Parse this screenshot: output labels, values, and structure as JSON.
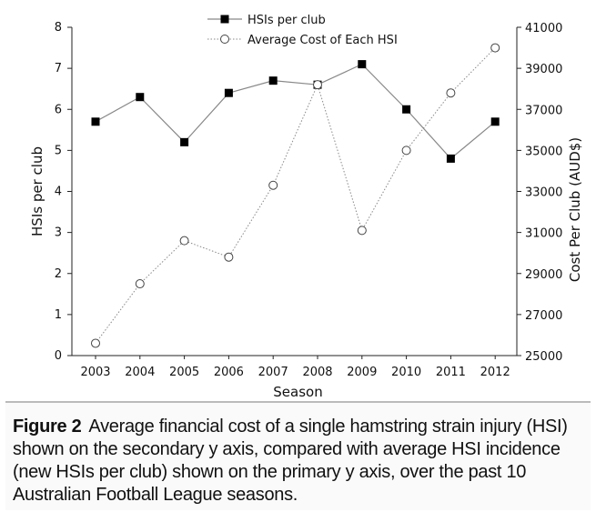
{
  "chart_data": {
    "type": "line",
    "x": [
      2003,
      2004,
      2005,
      2006,
      2007,
      2008,
      2009,
      2010,
      2011,
      2012
    ],
    "xlabel": "Season",
    "series": [
      {
        "name": "HSIs per club",
        "axis": "primary",
        "marker": "filled-square",
        "line": "solid",
        "color": "#888888",
        "values": [
          5.7,
          6.3,
          5.2,
          6.4,
          6.7,
          6.6,
          7.1,
          6.0,
          4.8,
          5.7
        ]
      },
      {
        "name": "Average Cost of Each HSI",
        "axis": "secondary",
        "marker": "open-circle",
        "line": "dotted",
        "color": "#888888",
        "values": [
          25600,
          28500,
          30600,
          29800,
          33300,
          38200,
          31100,
          35000,
          37800,
          40000
        ]
      }
    ],
    "y_primary": {
      "label": "HSIs per club",
      "range": [
        0,
        8
      ],
      "ticks": [
        "0",
        "1",
        "2",
        "3",
        "4",
        "5",
        "6",
        "7",
        "8"
      ]
    },
    "y_secondary": {
      "label": "Cost Per Club (AUD$)",
      "range": [
        25000,
        41000
      ],
      "ticks": [
        "25000",
        "27000",
        "29000",
        "31000",
        "33000",
        "35000",
        "37000",
        "39000",
        "41000"
      ]
    },
    "x_ticks": [
      "2003",
      "2004",
      "2005",
      "2006",
      "2007",
      "2008",
      "2009",
      "2010",
      "2011",
      "2012"
    ],
    "legend": {
      "placement": "top-center",
      "entries": [
        "HSIs per club",
        "Average Cost of Each HSI"
      ]
    },
    "grid": false
  },
  "caption": {
    "label": "Figure 2",
    "text": "Average financial cost of a single hamstring strain injury (HSI) shown on the secondary y axis, compared with average HSI incidence (new HSIs per club) shown on the primary y axis, over the past 10 Australian Football League seasons."
  }
}
